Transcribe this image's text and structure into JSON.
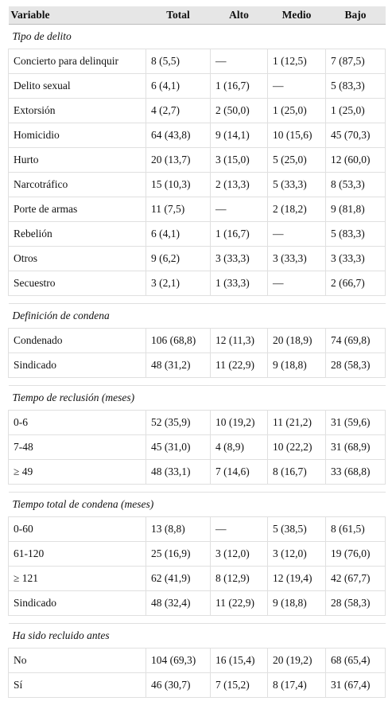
{
  "table": {
    "header": [
      "Variable",
      "Total",
      "Alto",
      "Medio",
      "Bajo"
    ],
    "sections": [
      {
        "title": "Tipo de delito",
        "rows": [
          [
            "Concierto para delinquir",
            "8 (5,5)",
            "—",
            "1 (12,5)",
            "7 (87,5)"
          ],
          [
            "Delito sexual",
            "6 (4,1)",
            "1 (16,7)",
            "—",
            "5 (83,3)"
          ],
          [
            "Extorsión",
            "4 (2,7)",
            "2 (50,0)",
            "1 (25,0)",
            "1 (25,0)"
          ],
          [
            "Homicidio",
            "64 (43,8)",
            "9 (14,1)",
            "10 (15,6)",
            "45 (70,3)"
          ],
          [
            "Hurto",
            "20 (13,7)",
            "3 (15,0)",
            "5 (25,0)",
            "12 (60,0)"
          ],
          [
            "Narcotráfico",
            "15 (10,3)",
            "2 (13,3)",
            "5 (33,3)",
            "8 (53,3)"
          ],
          [
            "Porte de armas",
            "11 (7,5)",
            "—",
            "2 (18,2)",
            "9 (81,8)"
          ],
          [
            "Rebelión",
            "6 (4,1)",
            "1 (16,7)",
            "—",
            "5 (83,3)"
          ],
          [
            "Otros",
            "9 (6,2)",
            "3 (33,3)",
            "3 (33,3)",
            "3 (33,3)"
          ],
          [
            "Secuestro",
            "3 (2,1)",
            "1 (33,3)",
            "—",
            "2 (66,7)"
          ]
        ]
      },
      {
        "title": "Definición de condena",
        "rows": [
          [
            "Condenado",
            "106 (68,8)",
            "12 (11,3)",
            "20 (18,9)",
            "74 (69,8)"
          ],
          [
            "Sindicado",
            "48 (31,2)",
            "11 (22,9)",
            "9 (18,8)",
            "28 (58,3)"
          ]
        ]
      },
      {
        "title": "Tiempo de reclusión (meses)",
        "rows": [
          [
            "0-6",
            "52 (35,9)",
            "10 (19,2)",
            "11 (21,2)",
            "31 (59,6)"
          ],
          [
            "7-48",
            "45 (31,0)",
            "4 (8,9)",
            "10 (22,2)",
            "31 (68,9)"
          ],
          [
            "≥ 49",
            "48 (33,1)",
            "7 (14,6)",
            "8 (16,7)",
            "33 (68,8)"
          ]
        ]
      },
      {
        "title": "Tiempo total de condena (meses)",
        "rows": [
          [
            "0-60",
            "13 (8,8)",
            "—",
            "5 (38,5)",
            "8 (61,5)"
          ],
          [
            "61-120",
            "25 (16,9)",
            "3 (12,0)",
            "3 (12,0)",
            "19 (76,0)"
          ],
          [
            "≥ 121",
            "62 (41,9)",
            "8 (12,9)",
            "12 (19,4)",
            "42 (67,7)"
          ],
          [
            "Sindicado",
            "48 (32,4)",
            "11 (22,9)",
            "9 (18,8)",
            "28 (58,3)"
          ]
        ]
      },
      {
        "title": "Ha sido recluido antes",
        "rows": [
          [
            "No",
            "104 (69,3)",
            "16 (15,4)",
            "20 (19,2)",
            "68 (65,4)"
          ],
          [
            "Sí",
            "46 (30,7)",
            "7 (15,2)",
            "8 (17,4)",
            "31 (67,4)"
          ]
        ]
      }
    ]
  }
}
